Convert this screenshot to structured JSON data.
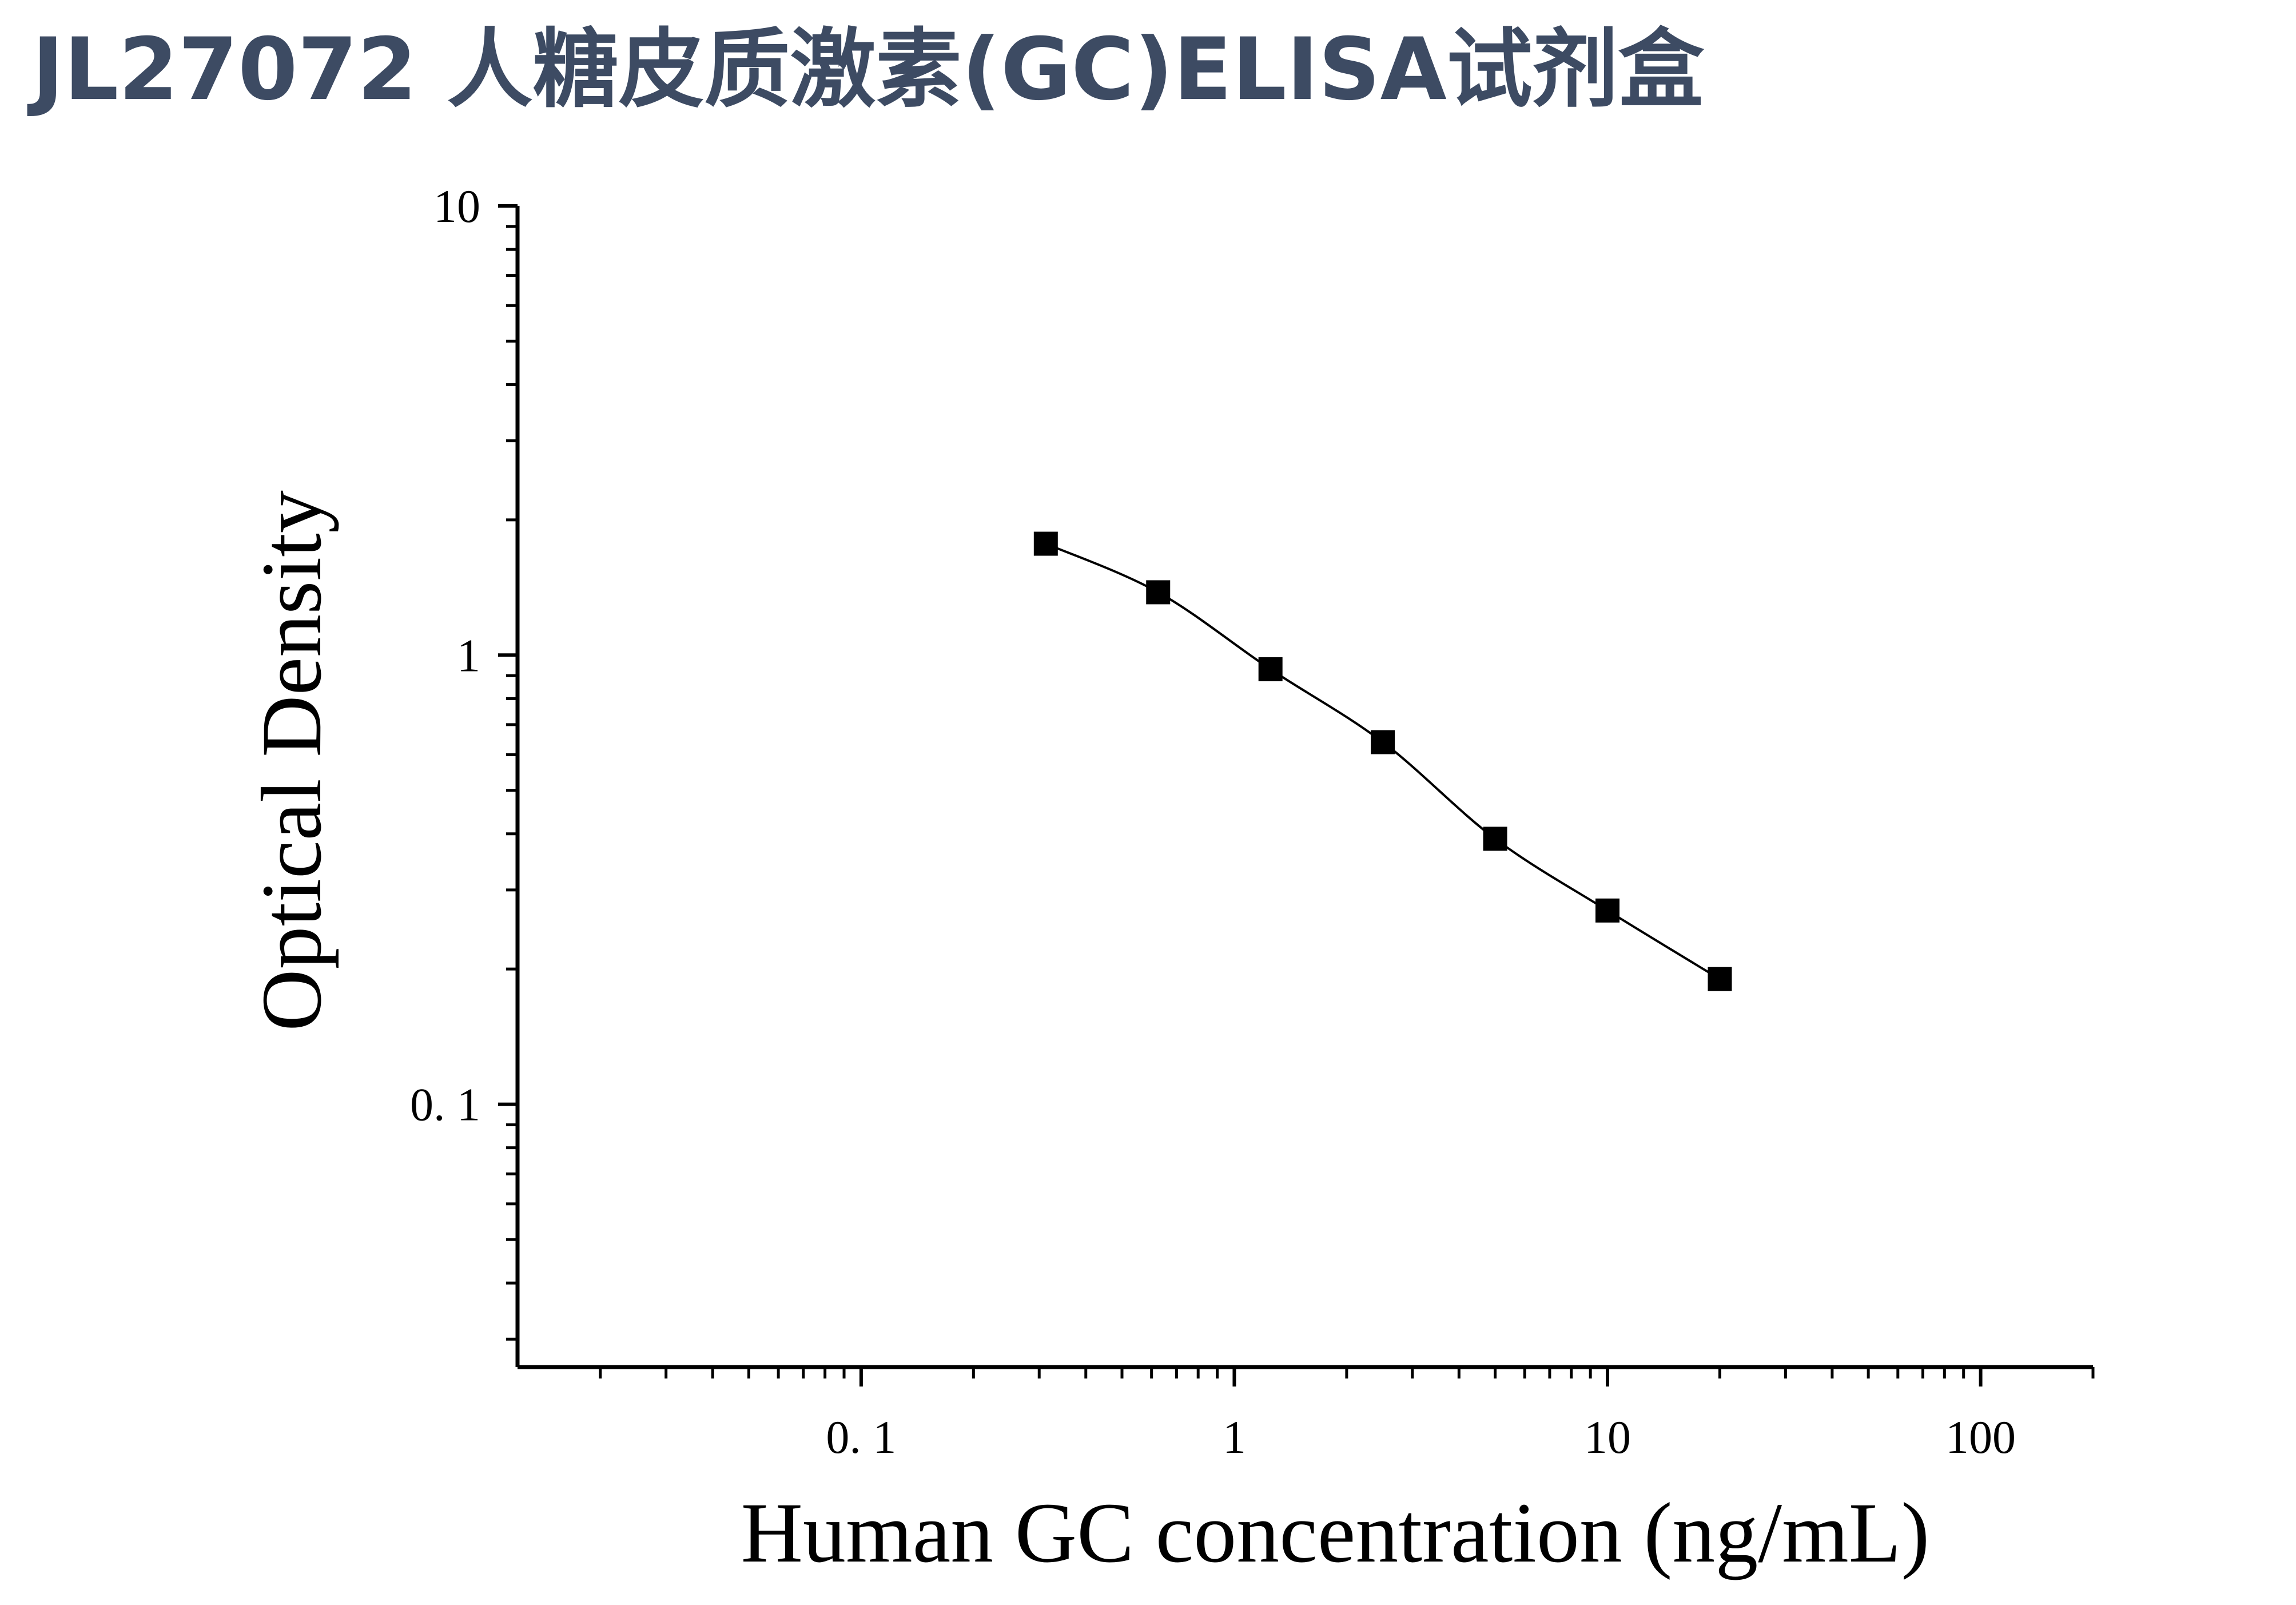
{
  "page": {
    "title": "JL27072 人糖皮质激素(GC)ELISA试剂盒"
  },
  "chart_data": {
    "type": "scatter",
    "title": "JL27072 人糖皮质激素(GC)ELISA试剂盒",
    "xlabel": "Human GC concentration (ng/mL)",
    "ylabel": "Optical Density",
    "xscale": "log",
    "yscale": "log",
    "xlim": [
      0.012,
      200
    ],
    "ylim": [
      0.026,
      10
    ],
    "x_tick_labels": [
      "0. 1",
      "1",
      "10",
      "100"
    ],
    "y_tick_labels": [
      "0. 1",
      "1",
      "10"
    ],
    "grid": false,
    "fit_line": true,
    "series": [
      {
        "x": [
          0.3125,
          0.625,
          1.25,
          2.5,
          5,
          10,
          20
        ],
        "y": [
          1.77,
          1.38,
          0.93,
          0.64,
          0.39,
          0.27,
          0.19
        ]
      }
    ],
    "colors": {
      "marker": "#000000",
      "line": "#000000",
      "axis": "#000000",
      "title": "#3d4b63"
    }
  }
}
